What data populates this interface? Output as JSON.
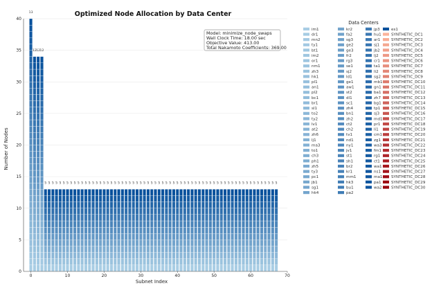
{
  "chart_data": {
    "type": "bar",
    "title": "Optimized Node Allocation by Data Center",
    "xlabel": "Subnet Index",
    "ylabel": "Number of Nodes",
    "xlim": [
      -2,
      70
    ],
    "ylim": [
      0,
      40
    ],
    "xticks": [
      0,
      10,
      20,
      30,
      40,
      50,
      60,
      70
    ],
    "yticks": [
      0,
      5,
      10,
      15,
      20,
      25,
      30,
      35,
      40
    ],
    "grid": "horizontal",
    "stacked": true,
    "subnets": [
      {
        "index": 0,
        "total": 40,
        "label": "13"
      },
      {
        "index": 1,
        "total": 34,
        "label": "12"
      },
      {
        "index": 2,
        "total": 34,
        "label": "12"
      },
      {
        "index": 3,
        "total": 34,
        "label": "12"
      },
      {
        "index": 4,
        "total": 13,
        "label": "5"
      },
      {
        "index": 5,
        "total": 13,
        "label": "5"
      },
      {
        "index": 6,
        "total": 13,
        "label": "5"
      },
      {
        "index": 7,
        "total": 13,
        "label": "5"
      },
      {
        "index": 8,
        "total": 13,
        "label": "5"
      },
      {
        "index": 9,
        "total": 13,
        "label": "5"
      },
      {
        "index": 10,
        "total": 13,
        "label": "5"
      },
      {
        "index": 11,
        "total": 13,
        "label": "5"
      },
      {
        "index": 12,
        "total": 13,
        "label": "5"
      },
      {
        "index": 13,
        "total": 13,
        "label": "5"
      },
      {
        "index": 14,
        "total": 13,
        "label": "5"
      },
      {
        "index": 15,
        "total": 13,
        "label": "5"
      },
      {
        "index": 16,
        "total": 13,
        "label": "5"
      },
      {
        "index": 17,
        "total": 13,
        "label": "5"
      },
      {
        "index": 18,
        "total": 13,
        "label": "5"
      },
      {
        "index": 19,
        "total": 13,
        "label": "5"
      },
      {
        "index": 20,
        "total": 13,
        "label": "5"
      },
      {
        "index": 21,
        "total": 13,
        "label": "5"
      },
      {
        "index": 22,
        "total": 13,
        "label": "5"
      },
      {
        "index": 23,
        "total": 13,
        "label": "5"
      },
      {
        "index": 24,
        "total": 13,
        "label": "5"
      },
      {
        "index": 25,
        "total": 13,
        "label": "5"
      },
      {
        "index": 26,
        "total": 13,
        "label": "5"
      },
      {
        "index": 27,
        "total": 13,
        "label": "5"
      },
      {
        "index": 28,
        "total": 13,
        "label": "5"
      },
      {
        "index": 29,
        "total": 13,
        "label": "5"
      },
      {
        "index": 30,
        "total": 13,
        "label": "5"
      },
      {
        "index": 31,
        "total": 13,
        "label": "5"
      },
      {
        "index": 32,
        "total": 13,
        "label": "5"
      },
      {
        "index": 33,
        "total": 13,
        "label": "5"
      },
      {
        "index": 34,
        "total": 13,
        "label": "5"
      },
      {
        "index": 35,
        "total": 13,
        "label": "5"
      },
      {
        "index": 36,
        "total": 13,
        "label": "5"
      },
      {
        "index": 37,
        "total": 13,
        "label": "5"
      },
      {
        "index": 38,
        "total": 13,
        "label": "5"
      },
      {
        "index": 39,
        "total": 13,
        "label": "5"
      },
      {
        "index": 40,
        "total": 13,
        "label": "5"
      },
      {
        "index": 41,
        "total": 13,
        "label": "5"
      },
      {
        "index": 42,
        "total": 13,
        "label": "5"
      },
      {
        "index": 43,
        "total": 13,
        "label": "5"
      },
      {
        "index": 44,
        "total": 13,
        "label": "5"
      },
      {
        "index": 45,
        "total": 13,
        "label": "5"
      },
      {
        "index": 46,
        "total": 13,
        "label": "5"
      },
      {
        "index": 47,
        "total": 13,
        "label": "5"
      },
      {
        "index": 48,
        "total": 13,
        "label": "5"
      },
      {
        "index": 49,
        "total": 13,
        "label": "5"
      },
      {
        "index": 50,
        "total": 13,
        "label": "5"
      },
      {
        "index": 51,
        "total": 13,
        "label": "5"
      },
      {
        "index": 52,
        "total": 13,
        "label": "5"
      },
      {
        "index": 53,
        "total": 13,
        "label": "5"
      },
      {
        "index": 54,
        "total": 13,
        "label": "5"
      },
      {
        "index": 55,
        "total": 13,
        "label": "5"
      },
      {
        "index": 56,
        "total": 13,
        "label": "5"
      },
      {
        "index": 57,
        "total": 13,
        "label": "5"
      },
      {
        "index": 58,
        "total": 13,
        "label": "5"
      },
      {
        "index": 59,
        "total": 13,
        "label": "5"
      },
      {
        "index": 60,
        "total": 13,
        "label": "5"
      },
      {
        "index": 61,
        "total": 13,
        "label": "5"
      },
      {
        "index": 62,
        "total": 13,
        "label": "5"
      },
      {
        "index": 63,
        "total": 13,
        "label": "5"
      },
      {
        "index": 64,
        "total": 13,
        "label": "5"
      },
      {
        "index": 65,
        "total": 13,
        "label": "5"
      },
      {
        "index": 66,
        "total": 13,
        "label": "5"
      },
      {
        "index": 67,
        "total": 13,
        "label": "5"
      }
    ],
    "annotation": [
      "Model: minimize_node_swaps",
      "Wall Clock Time: 18.00 sec",
      "Objective Value: 413.00",
      "Total Nakamoto Coefficients: 369.00"
    ],
    "legend": {
      "title": "Data Centers",
      "placement": "right",
      "columns": [
        [
          "im1",
          "dr1",
          "mn2",
          "ty1",
          "bt1",
          "im2",
          "or1",
          "nm1",
          "zh3",
          "hk1",
          "pl1",
          "an1",
          "pl2",
          "bc1",
          "br1",
          "sl1",
          "to2",
          "ty2",
          "lv1",
          "at2",
          "zh6",
          "lj1",
          "ma3",
          "to1",
          "ch3",
          "ph1",
          "zh5",
          "ty3",
          "pc1",
          "jb1",
          "sg1",
          "hk4"
        ],
        [
          "kr2",
          "fa2",
          "sg3",
          "ge2",
          "ge3",
          "fr2",
          "rg3",
          "se1",
          "sj2",
          "ld1",
          "ge1",
          "aw1",
          "st2",
          "dl1",
          "sc1",
          "zh4",
          "bn1",
          "zh2",
          "ct2",
          "ch2",
          "tv1",
          "nd1",
          "ny1",
          "jv1",
          "st1",
          "sh1",
          "br2",
          "kr1",
          "mm1",
          "hk3",
          "bu1",
          "pa2"
        ],
        [
          "jp3",
          "hu1",
          "ar1",
          "sj1",
          "jb2",
          "lj2",
          "cr1",
          "ta1",
          "li2",
          "sg2",
          "mb1",
          "gn1",
          "ba1",
          "zh7",
          "bg1",
          "tp1",
          "sj3",
          "md1",
          "pr1",
          "li1",
          "cm1",
          "zg1",
          "wa3",
          "fm1",
          "rg1",
          "ct1",
          "wa1",
          "ns1",
          "ma1",
          "pa1",
          "wa2"
        ],
        [
          "es1",
          "SYNTHETIC_DC1",
          "SYNTHETIC_DC2",
          "SYNTHETIC_DC3",
          "SYNTHETIC_DC4",
          "SYNTHETIC_DC5",
          "SYNTHETIC_DC6",
          "SYNTHETIC_DC7",
          "SYNTHETIC_DC8",
          "SYNTHETIC_DC9",
          "SYNTHETIC_DC10",
          "SYNTHETIC_DC11",
          "SYNTHETIC_DC12",
          "SYNTHETIC_DC13",
          "SYNTHETIC_DC14",
          "SYNTHETIC_DC15",
          "SYNTHETIC_DC16",
          "SYNTHETIC_DC17",
          "SYNTHETIC_DC18",
          "SYNTHETIC_DC19",
          "SYNTHETIC_DC20",
          "SYNTHETIC_DC21",
          "SYNTHETIC_DC22",
          "SYNTHETIC_DC23",
          "SYNTHETIC_DC24",
          "SYNTHETIC_DC25",
          "SYNTHETIC_DC26",
          "SYNTHETIC_DC27",
          "SYNTHETIC_DC28",
          "SYNTHETIC_DC29",
          "SYNTHETIC_DC30"
        ]
      ]
    },
    "colors": {
      "blue_light": "#a8cde4",
      "blue_dark": "#08519c",
      "red_light": "#fbb39a",
      "red_dark": "#99000d",
      "grid": "#e6e6e6",
      "bar_edge": "#ffffff"
    }
  }
}
